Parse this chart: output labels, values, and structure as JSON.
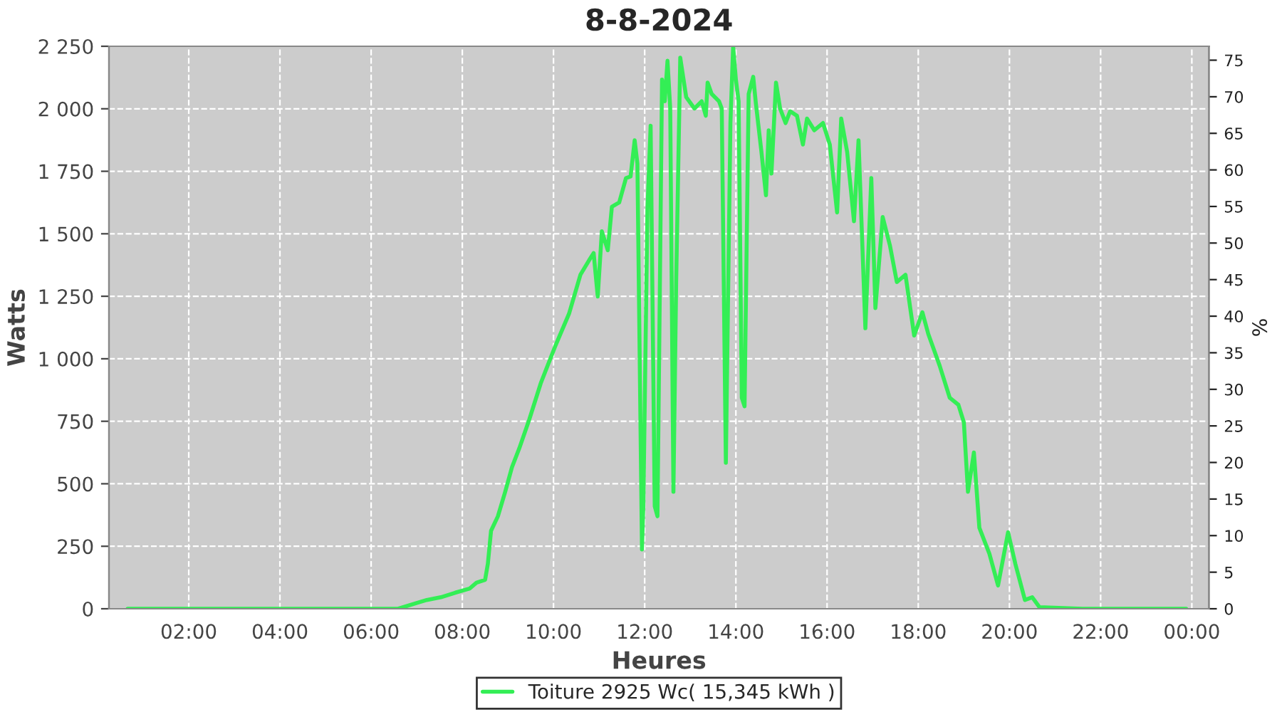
{
  "chart_data": {
    "type": "line",
    "title": "8-8-2024",
    "xlabel": "Heures",
    "ylabel": "Watts",
    "y2label": "%",
    "x": [
      0.66,
      6.59,
      7.0,
      7.22,
      7.53,
      7.84,
      8.16,
      8.31,
      8.5,
      8.56,
      8.63,
      8.78,
      8.94,
      9.09,
      9.25,
      9.47,
      9.72,
      10.03,
      10.34,
      10.59,
      10.78,
      10.88,
      10.97,
      11.06,
      11.19,
      11.28,
      11.44,
      11.59,
      11.69,
      11.78,
      11.84,
      11.94,
      11.97,
      12.06,
      12.13,
      12.22,
      12.28,
      12.38,
      12.44,
      12.5,
      12.56,
      12.63,
      12.69,
      12.78,
      12.91,
      13.09,
      13.25,
      13.34,
      13.38,
      13.47,
      13.63,
      13.69,
      13.78,
      13.88,
      13.94,
      14.0,
      14.06,
      14.13,
      14.19,
      14.28,
      14.38,
      14.44,
      14.56,
      14.66,
      14.72,
      14.78,
      14.88,
      14.97,
      15.09,
      15.19,
      15.34,
      15.47,
      15.56,
      15.72,
      15.91,
      16.06,
      16.22,
      16.31,
      16.44,
      16.59,
      16.69,
      16.84,
      16.97,
      17.06,
      17.22,
      17.38,
      17.53,
      17.72,
      17.91,
      18.09,
      18.22,
      18.47,
      18.69,
      18.88,
      19.0,
      19.09,
      19.22,
      19.34,
      19.56,
      19.75,
      19.97,
      20.13,
      20.34,
      20.5,
      20.66,
      21.6,
      23.875
    ],
    "series": [
      {
        "name": "Toiture 2925 Wc( 15,345 kWh )",
        "color": "#33ee55",
        "values": [
          0,
          0,
          23,
          35,
          46,
          64,
          81,
          104,
          116,
          180,
          312,
          370,
          468,
          567,
          642,
          758,
          902,
          1047,
          1180,
          1336,
          1394,
          1423,
          1249,
          1510,
          1434,
          1608,
          1625,
          1723,
          1729,
          1874,
          1781,
          237,
          410,
          1596,
          1932,
          410,
          370,
          2117,
          2030,
          2192,
          2001,
          468,
          1307,
          2204,
          2047,
          2001,
          2030,
          1972,
          2105,
          2059,
          2030,
          2001,
          584,
          1943,
          2250,
          2117,
          2030,
          844,
          810,
          2059,
          2128,
          2019,
          1828,
          1654,
          1914,
          1741,
          2105,
          2001,
          1943,
          1990,
          1972,
          1857,
          1961,
          1914,
          1943,
          1857,
          1585,
          1961,
          1828,
          1550,
          1874,
          1122,
          1723,
          1203,
          1567,
          1452,
          1307,
          1336,
          1093,
          1186,
          1099,
          972,
          844,
          816,
          746,
          468,
          625,
          324,
          220,
          93,
          306,
          179,
          35,
          46,
          6,
          0,
          0
        ]
      }
    ],
    "xlim": [
      0.25,
      24.375
    ],
    "xticks": [
      {
        "value": 2,
        "label": "02:00"
      },
      {
        "value": 4,
        "label": "04:00"
      },
      {
        "value": 6,
        "label": "06:00"
      },
      {
        "value": 8,
        "label": "08:00"
      },
      {
        "value": 10,
        "label": "10:00"
      },
      {
        "value": 12,
        "label": "12:00"
      },
      {
        "value": 14,
        "label": "14:00"
      },
      {
        "value": 16,
        "label": "16:00"
      },
      {
        "value": 18,
        "label": "18:00"
      },
      {
        "value": 20,
        "label": "20:00"
      },
      {
        "value": 22,
        "label": "22:00"
      },
      {
        "value": 24,
        "label": "00:00"
      }
    ],
    "ylim": [
      0,
      2250
    ],
    "yticks": [
      0,
      250,
      500,
      750,
      {
        "value": 1000,
        "label": "1 000"
      },
      {
        "value": 1250,
        "label": "1 250"
      },
      {
        "value": 1500,
        "label": "1 500"
      },
      {
        "value": 1750,
        "label": "1 750"
      },
      {
        "value": 2000,
        "label": "2 000"
      },
      {
        "value": 2250,
        "label": "2 250"
      }
    ],
    "y2lim": [
      0,
      76.9
    ],
    "y2ticks": [
      0,
      5,
      10,
      15,
      20,
      25,
      30,
      35,
      40,
      45,
      50,
      55,
      60,
      65,
      70,
      75
    ],
    "grid": true,
    "legend": "bottom",
    "line_style": "solid",
    "marker": "none"
  }
}
